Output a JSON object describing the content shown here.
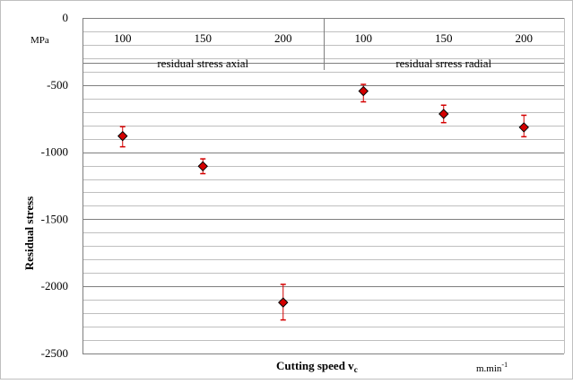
{
  "chart_data": {
    "type": "scatter",
    "ylabel": "Residual stress",
    "xlabel_main": "Cutting speed v",
    "xlabel_sub": "c",
    "x_unit_main": "m.min",
    "x_unit_exp": "-1",
    "y_unit": "MPa",
    "ylim": [
      -2500,
      0
    ],
    "y_major_step": 500,
    "y_minor_step": 100,
    "y_ticks": [
      "0",
      "-500",
      "-1000",
      "-1500",
      "-2000",
      "-2500"
    ],
    "grid": true,
    "groups": [
      {
        "label": "residual stress axial",
        "categories": [
          "100",
          "150",
          "200"
        ]
      },
      {
        "label": "residual srress radial",
        "categories": [
          "100",
          "150",
          "200"
        ]
      }
    ],
    "series": [
      {
        "marker": "diamond",
        "color": "#d40000",
        "points": [
          {
            "group": 0,
            "category": "100",
            "value": -880,
            "err_low": -960,
            "err_high": -810
          },
          {
            "group": 0,
            "category": "150",
            "value": -1105,
            "err_low": -1160,
            "err_high": -1050
          },
          {
            "group": 0,
            "category": "200",
            "value": -2120,
            "err_low": -2250,
            "err_high": -1985
          },
          {
            "group": 1,
            "category": "100",
            "value": -545,
            "err_low": -625,
            "err_high": -495
          },
          {
            "group": 1,
            "category": "150",
            "value": -715,
            "err_low": -780,
            "err_high": -650
          },
          {
            "group": 1,
            "category": "200",
            "value": -815,
            "err_low": -885,
            "err_high": -725
          }
        ]
      }
    ]
  }
}
